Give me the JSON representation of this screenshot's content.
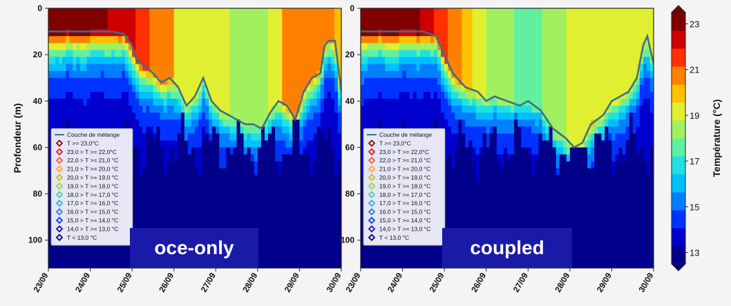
{
  "chart_data": [
    {
      "type": "heatmap",
      "panel_label": "oce-only",
      "xlabel": "",
      "ylabel": "Profondeur (m)",
      "x_ticks": [
        "23/09",
        "24/09",
        "25/09",
        "26/09",
        "27/09",
        "28/09",
        "29/09",
        "30/09"
      ],
      "x_range": [
        0,
        7
      ],
      "y_ticks": [
        0,
        20,
        40,
        60,
        80,
        100
      ],
      "y_range": [
        0,
        112
      ],
      "y_reversed": true,
      "mixed_layer_series": {
        "name": "Couche de mélange",
        "x": [
          0,
          0.5,
          1,
          1.5,
          1.8,
          2.0,
          2.1,
          2.3,
          2.5,
          2.7,
          2.9,
          3.1,
          3.3,
          3.5,
          3.7,
          3.9,
          4.1,
          4.3,
          4.5,
          4.7,
          4.9,
          5.1,
          5.3,
          5.5,
          5.7,
          5.9,
          6.1,
          6.3,
          6.5,
          6.6,
          6.7,
          6.85,
          7.0
        ],
        "y": [
          10,
          10,
          10,
          10,
          11,
          16,
          22,
          25,
          28,
          32,
          30,
          34,
          42,
          38,
          30,
          40,
          44,
          46,
          48,
          50,
          50,
          52,
          45,
          40,
          42,
          48,
          36,
          30,
          28,
          16,
          14,
          14,
          36
        ]
      },
      "marker_column_days": [
        0,
        0.5,
        1,
        1.5,
        2,
        2.5,
        3,
        3.5,
        4,
        4.5,
        5,
        5.5,
        6,
        6.5,
        7
      ]
    },
    {
      "type": "heatmap",
      "panel_label": "coupled",
      "xlabel": "",
      "ylabel": "",
      "x_ticks": [
        "23/09",
        "24/09",
        "25/09",
        "26/09",
        "27/09",
        "28/09",
        "29/09",
        "30/09"
      ],
      "x_range": [
        0,
        7
      ],
      "y_ticks": [
        0,
        20,
        40,
        60,
        80,
        100
      ],
      "y_range": [
        0,
        112
      ],
      "y_reversed": true,
      "mixed_layer_series": {
        "name": "Couche de mélange",
        "x": [
          0,
          0.5,
          1,
          1.5,
          1.8,
          2.0,
          2.2,
          2.5,
          2.8,
          3.0,
          3.2,
          3.5,
          3.8,
          4.0,
          4.3,
          4.6,
          4.9,
          5.1,
          5.3,
          5.5,
          5.8,
          6.0,
          6.2,
          6.4,
          6.6,
          6.75,
          6.85,
          7.0
        ],
        "y": [
          10,
          10,
          10,
          10,
          12,
          20,
          28,
          34,
          36,
          40,
          38,
          40,
          42,
          40,
          44,
          52,
          56,
          60,
          58,
          50,
          46,
          40,
          38,
          36,
          30,
          16,
          12,
          24
        ]
      },
      "marker_column_days": [
        0,
        0.5,
        1,
        1.5,
        2,
        2.5,
        3,
        3.5,
        4,
        4.5,
        5,
        5.5,
        6,
        6.5,
        7
      ]
    }
  ],
  "legend": {
    "placement": "bottom-left",
    "entries": [
      {
        "label": "Couche de mélange",
        "kind": "line",
        "color": "#3d6e8c"
      },
      {
        "label": "T >= 23,0°C",
        "color": "#8b0000"
      },
      {
        "label": "23,0 > T >= 22,0°C",
        "color": "#e41a1c"
      },
      {
        "label": "22,0 > T >= 21,0 °C",
        "color": "#ff5722"
      },
      {
        "label": "21,0 > T >= 20,0 °C",
        "color": "#ffa726"
      },
      {
        "label": "20,0 > T >= 19,0 °C",
        "color": "#c0c000"
      },
      {
        "label": "19,0 > T >= 18,0 °C",
        "color": "#88e040"
      },
      {
        "label": "18,0 > T >= 17,0 °C",
        "color": "#40d0a0"
      },
      {
        "label": "17,0 > T >= 16,0 °C",
        "color": "#30b0d0"
      },
      {
        "label": "16,0 > T >= 15,0 °C",
        "color": "#2080e0"
      },
      {
        "label": "15,0 > T >= 14,0 °C",
        "color": "#1040e0"
      },
      {
        "label": "14,0 > T >= 13,0 °C",
        "color": "#1010b0"
      },
      {
        "label": "T < 13,0 °C",
        "color": "#000070"
      }
    ]
  },
  "colorbar": {
    "label": "Température (°C)",
    "ticks": [
      13,
      15,
      17,
      19,
      21,
      23
    ],
    "range": [
      12.5,
      23.5
    ],
    "colors": [
      "#00008a",
      "#0000cd",
      "#0033ff",
      "#0080ff",
      "#00c0ff",
      "#20e0e0",
      "#60f0a0",
      "#a0f060",
      "#e0f030",
      "#ffc000",
      "#ff8000",
      "#ff3000",
      "#cc0000",
      "#800000"
    ]
  },
  "panel_labels": [
    "oce-only",
    "coupled"
  ]
}
